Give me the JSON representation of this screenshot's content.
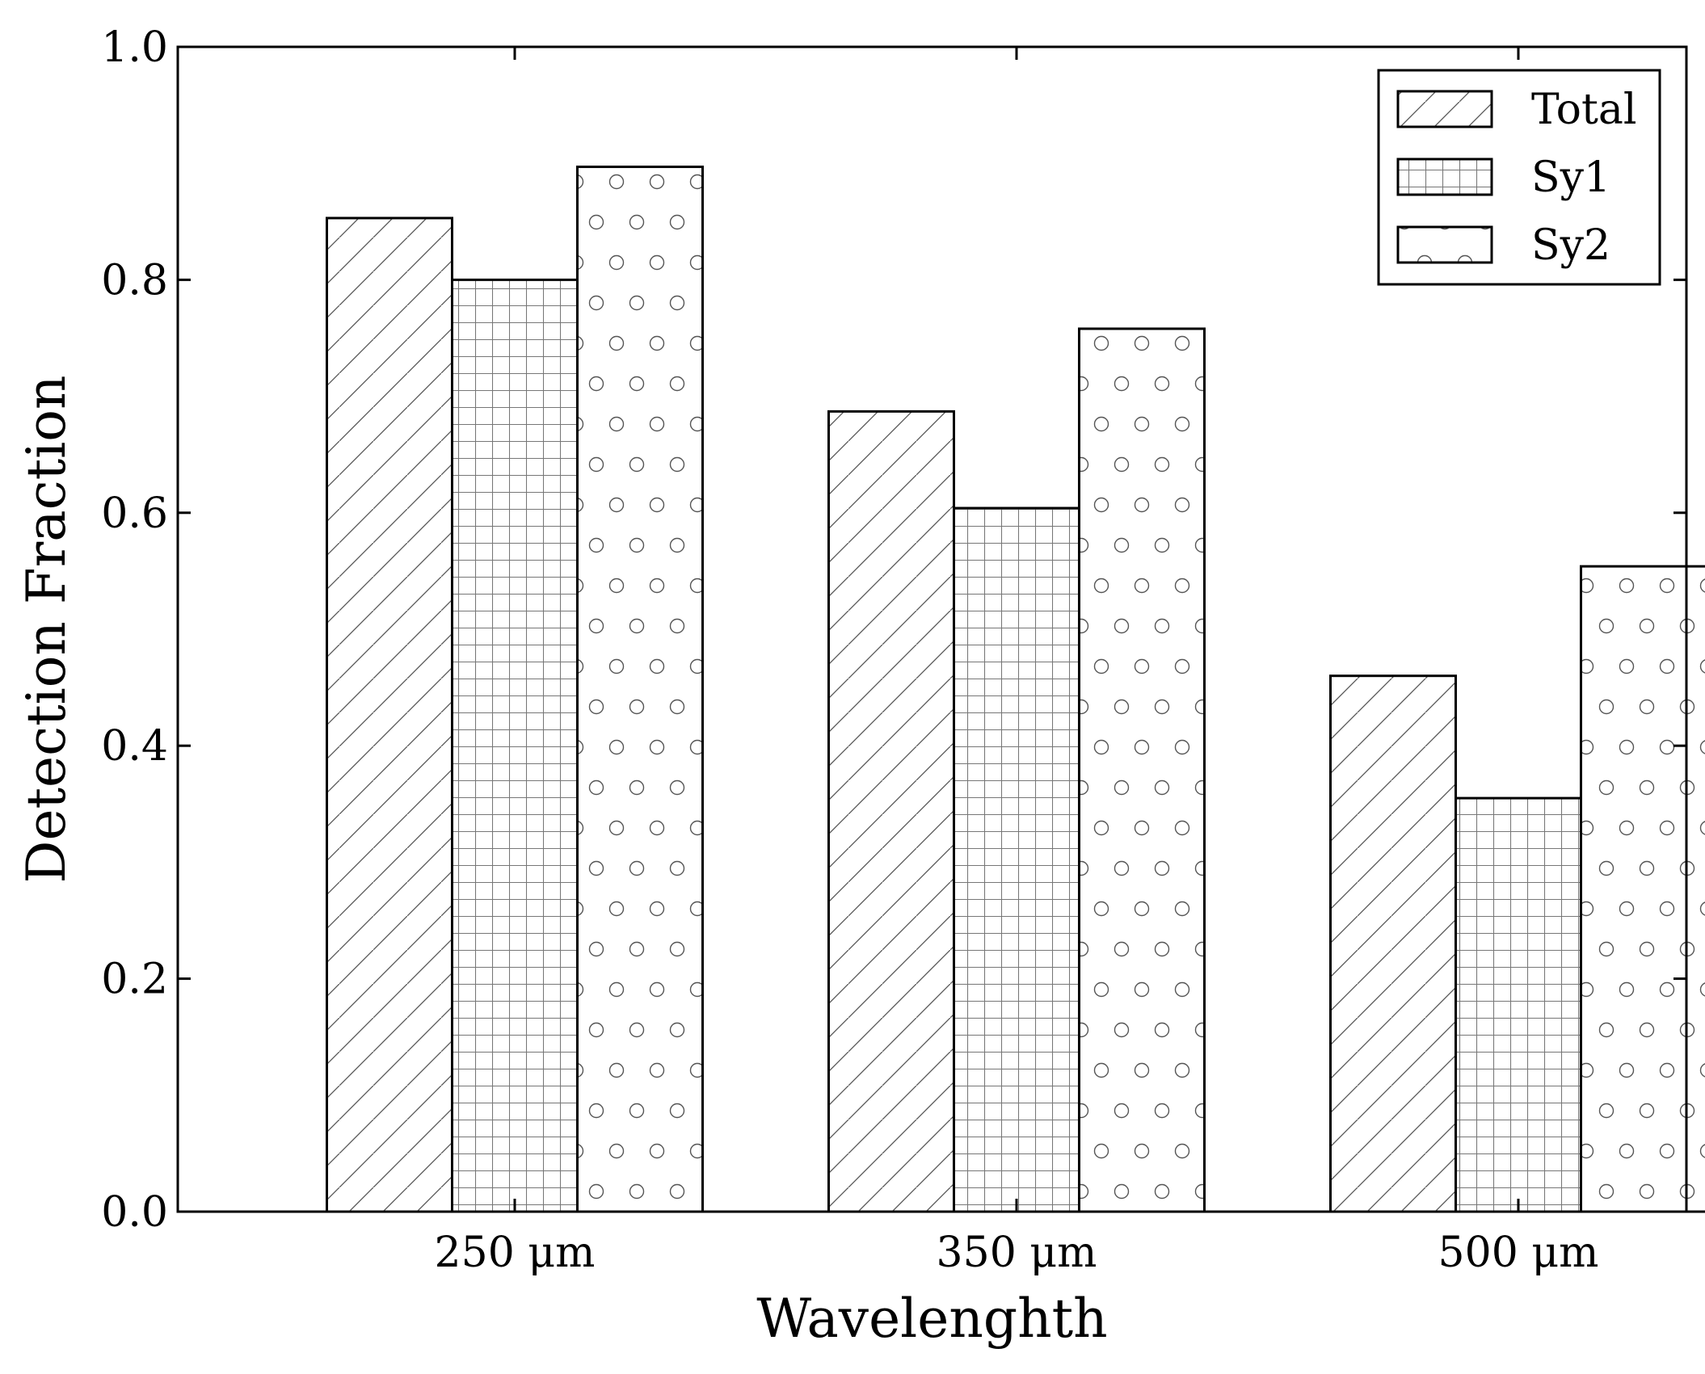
{
  "chart_data": {
    "type": "bar",
    "title": "",
    "xlabel": "Wavelenghth",
    "ylabel": "Detection Fraction",
    "categories": [
      "250 μm",
      "350 μm",
      "500 μm"
    ],
    "series": [
      {
        "name": "Total",
        "values": [
          0.853,
          0.687,
          0.46
        ],
        "pattern": "hatch-diagonal"
      },
      {
        "name": "Sy1",
        "values": [
          0.8,
          0.604,
          0.355
        ],
        "pattern": "grid"
      },
      {
        "name": "Sy2",
        "values": [
          0.897,
          0.758,
          0.554
        ],
        "pattern": "circles"
      }
    ],
    "ylim": [
      0,
      1.0
    ],
    "yticks": [
      "0.0",
      "0.2",
      "0.4",
      "0.6",
      "0.8",
      "1.0"
    ],
    "grid": false,
    "legend_position": "top-right",
    "colors": {
      "edge": "#000000",
      "fill": "#ffffff",
      "pattern": "#555555"
    }
  }
}
